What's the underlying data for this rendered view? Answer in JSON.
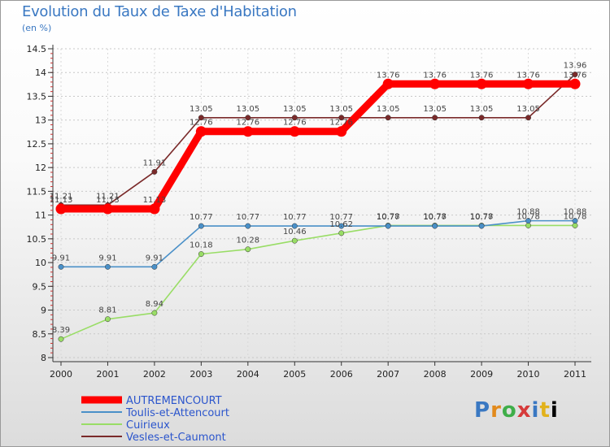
{
  "header": {
    "title": "Evolution du Taux de Taxe d'Habitation",
    "unit": "(en %)"
  },
  "logo": {
    "text": "Proxiti"
  },
  "chart_data": {
    "type": "line",
    "title": "Evolution du Taux de Taxe d'Habitation",
    "ylabel": "(en %)",
    "xlabel": "",
    "ylim": [
      8,
      14.5
    ],
    "yticks": [
      "8",
      "8.5",
      "9",
      "9.5",
      "10",
      "10.5",
      "11",
      "11.5",
      "12",
      "12.5",
      "13",
      "13.5",
      "14",
      "14.5"
    ],
    "categories": [
      "2000",
      "2001",
      "2002",
      "2003",
      "2004",
      "2005",
      "2006",
      "2007",
      "2008",
      "2009",
      "2010",
      "2011"
    ],
    "legend_position": "bottom-left",
    "series": [
      {
        "name": "AUTREMENCOURT",
        "color": "#ff0000",
        "values": [
          11.13,
          11.13,
          11.13,
          12.76,
          12.76,
          12.76,
          12.76,
          13.76,
          13.76,
          13.76,
          13.76,
          13.76
        ],
        "labels": [
          "11.13",
          "11.13",
          "11.13",
          "12.76",
          "12.76",
          "12.76",
          "12.76",
          "13.76",
          "13.76",
          "13.76",
          "13.76",
          "13.76"
        ]
      },
      {
        "name": "Toulis-et-Attencourt",
        "color": "#4a90c8",
        "values": [
          9.91,
          9.91,
          9.91,
          10.77,
          10.77,
          10.77,
          10.77,
          10.77,
          10.77,
          10.77,
          10.88,
          10.88
        ],
        "labels": [
          "9.91",
          "9.91",
          "9.91",
          "10.77",
          "10.77",
          "10.77",
          "10.77",
          "10.77",
          "10.77",
          "10.77",
          "10.88",
          "10.88"
        ]
      },
      {
        "name": "Cuirieux",
        "color": "#99dd66",
        "values": [
          8.39,
          8.81,
          8.94,
          10.18,
          10.28,
          10.46,
          10.62,
          10.78,
          10.78,
          10.78,
          10.78,
          10.78
        ],
        "labels": [
          "8.39",
          "8.81",
          "8.94",
          "10.18",
          "10.28",
          "10.46",
          "10.62",
          "10.78",
          "10.78",
          "10.78",
          "10.78",
          "10.78"
        ]
      },
      {
        "name": "Vesles-et-Caumont",
        "color": "#7a2a2a",
        "values": [
          11.21,
          11.21,
          11.91,
          13.05,
          13.05,
          13.05,
          13.05,
          13.05,
          13.05,
          13.05,
          13.05,
          13.96
        ],
        "labels": [
          "11.21",
          "11.21",
          "11.91",
          "13.05",
          "13.05",
          "13.05",
          "13.05",
          "13.05",
          "13.05",
          "13.05",
          "13.05",
          "13.96"
        ]
      }
    ]
  }
}
